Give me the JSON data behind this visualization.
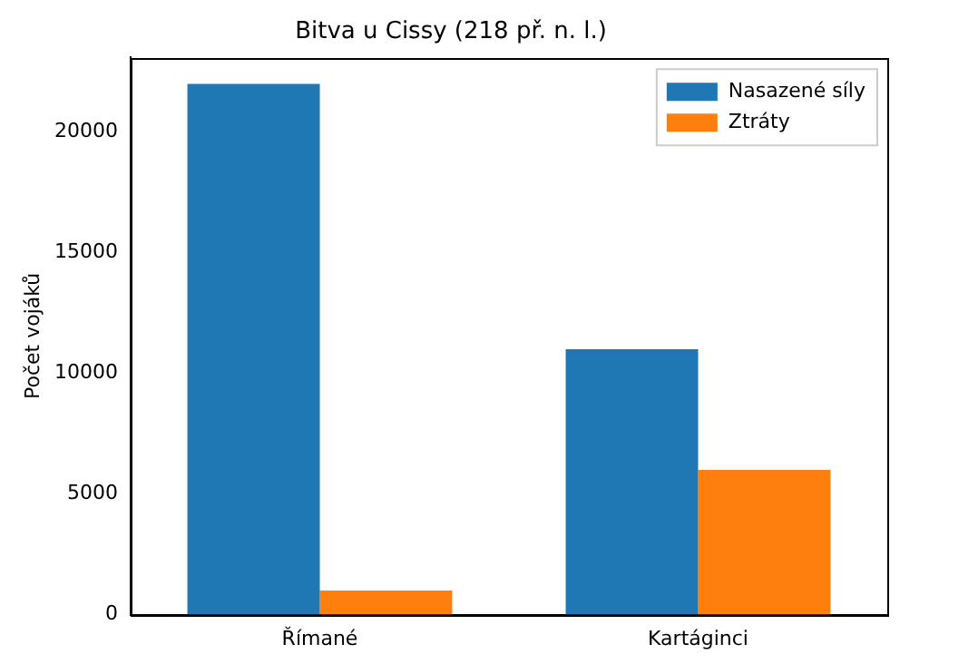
{
  "chart_data": {
    "type": "bar",
    "title": "Bitva u Cissy (218 př. n. l.)",
    "ylabel": "Počet vojáků",
    "categories": [
      "Římané",
      "Kartáginci"
    ],
    "series": [
      {
        "name": "Nasazené síly",
        "color": "#1f77b4",
        "values": [
          22000,
          11000
        ]
      },
      {
        "name": "Ztráty",
        "color": "#ff7f0e",
        "values": [
          1000,
          6000
        ]
      }
    ],
    "ylim": [
      0,
      23100
    ],
    "yticks": [
      0,
      5000,
      10000,
      15000,
      20000
    ],
    "grid": false,
    "legend": "top right"
  }
}
